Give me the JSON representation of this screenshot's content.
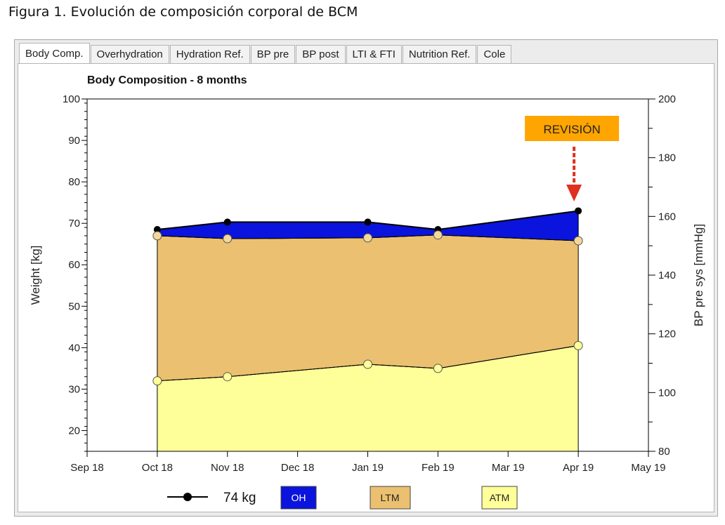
{
  "figure_caption": "Figura 1. Evolución de composición corporal de BCM",
  "tabs": [
    {
      "label": "Body Comp.",
      "active": true
    },
    {
      "label": "Overhydration",
      "active": false
    },
    {
      "label": "Hydration Ref.",
      "active": false
    },
    {
      "label": "BP pre",
      "active": false
    },
    {
      "label": "BP post",
      "active": false
    },
    {
      "label": "LTI & FTI",
      "active": false
    },
    {
      "label": "Nutrition Ref.",
      "active": false
    },
    {
      "label": "Cole",
      "active": false
    }
  ],
  "annotation": {
    "label": "REVISIÓN",
    "box_color": "#ffa500",
    "arrow_color": "#e03020"
  },
  "chart_data": {
    "type": "area",
    "title": "Body Composition - 8 months",
    "xlabel": "",
    "ylabel": "Weight [kg]",
    "y2label": "BP pre sys [mmHg]",
    "x_ticks": [
      "Sep 18",
      "Oct 18",
      "Nov 18",
      "Dec 18",
      "Jan 19",
      "Feb 19",
      "Mar 19",
      "Apr 19",
      "May 19"
    ],
    "x_points": [
      "Oct 18",
      "Nov 18",
      "Jan 19",
      "Feb 19",
      "Apr 19"
    ],
    "ylim": [
      15,
      100
    ],
    "y_ticks": [
      20,
      30,
      40,
      50,
      60,
      70,
      80,
      90,
      100
    ],
    "y2lim": [
      80,
      200
    ],
    "y2_ticks": [
      80,
      100,
      120,
      140,
      160,
      180,
      200
    ],
    "grid": false,
    "series": [
      {
        "name": "ATM",
        "values": [
          32,
          33,
          36,
          35,
          40.5
        ],
        "color": "#ffff99"
      },
      {
        "name": "LTM",
        "values": [
          67,
          66.3,
          66.5,
          67.2,
          65.8
        ],
        "color": "#ebc070"
      },
      {
        "name": "OH",
        "values": [
          68.5,
          70.3,
          70.3,
          68.5,
          73
        ],
        "color": "#0a14dc"
      },
      {
        "name": "74 kg",
        "values": [
          68.5,
          70.3,
          70.3,
          68.5,
          73
        ],
        "color": "#000000"
      }
    ],
    "legend": [
      {
        "label": "74 kg",
        "kind": "line-marker",
        "color": "#000000"
      },
      {
        "label": "OH",
        "kind": "box",
        "color": "#0a14dc",
        "text_color": "#ffffff"
      },
      {
        "label": "LTM",
        "kind": "box",
        "color": "#ebc070",
        "text_color": "#222222"
      },
      {
        "label": "ATM",
        "kind": "box",
        "color": "#ffff99",
        "text_color": "#222222"
      }
    ],
    "legend_position": "bottom"
  }
}
